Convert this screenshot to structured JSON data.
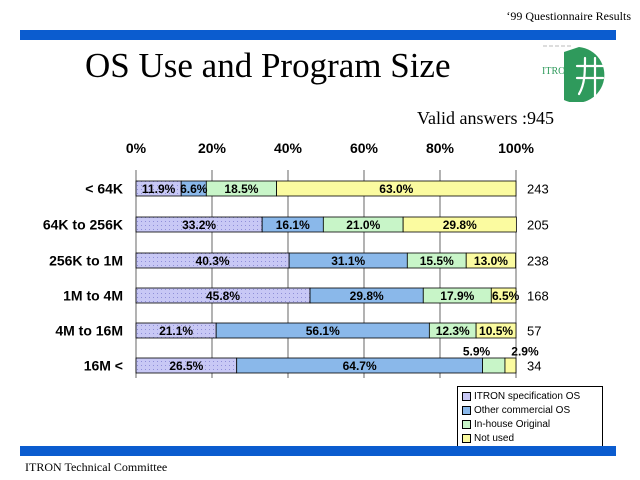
{
  "header_note": "‘99 Questionnaire Results",
  "title": "OS Use and Program Size",
  "logo_text": "ITRON",
  "valid_answers": "Valid answers :945",
  "footer": "ITRON Technical Committee",
  "chart_data": {
    "type": "bar",
    "orientation": "horizontal",
    "stacked": "percent",
    "categories": [
      "< 64K",
      "64K to 256K",
      "256K to 1M",
      "1M to 4M",
      "4M to 16M",
      "16M <"
    ],
    "series": [
      {
        "name": "ITRON specification OS",
        "color": "#c8c8f5",
        "values": [
          11.9,
          33.2,
          40.3,
          45.8,
          21.1,
          26.5
        ],
        "labels": [
          "11.9%",
          "33.2%",
          "40.3%",
          "45.8%",
          "21.1%",
          "26.5%"
        ]
      },
      {
        "name": "Other commercial OS",
        "color": "#8ab8ea",
        "values": [
          6.6,
          16.1,
          31.1,
          29.8,
          56.1,
          64.7
        ],
        "labels": [
          "6.6%",
          "16.1%",
          "31.1%",
          "29.8%",
          "56.1%",
          "64.7%"
        ]
      },
      {
        "name": "In-house Original",
        "color": "#c8f5c8",
        "values": [
          18.5,
          21.0,
          15.5,
          17.9,
          12.3,
          5.9
        ],
        "labels": [
          "18.5%",
          "21.0%",
          "15.5%",
          "17.9%",
          "12.3%",
          "5.9%"
        ]
      },
      {
        "name": "Not used",
        "color": "#fbfba0",
        "values": [
          63.0,
          29.8,
          13.0,
          6.5,
          10.5,
          2.9
        ],
        "labels": [
          "63.0%",
          "29.8%",
          "13.0%",
          "6.5%",
          "10.5%",
          "2.9%"
        ]
      }
    ],
    "totals": [
      "243",
      "205",
      "238",
      "168",
      "57",
      "34"
    ],
    "xticks": [
      "0%",
      "20%",
      "40%",
      "60%",
      "80%",
      "100%"
    ],
    "xlim": [
      0,
      100
    ],
    "grid": true,
    "legend_position": "bottom-right"
  }
}
